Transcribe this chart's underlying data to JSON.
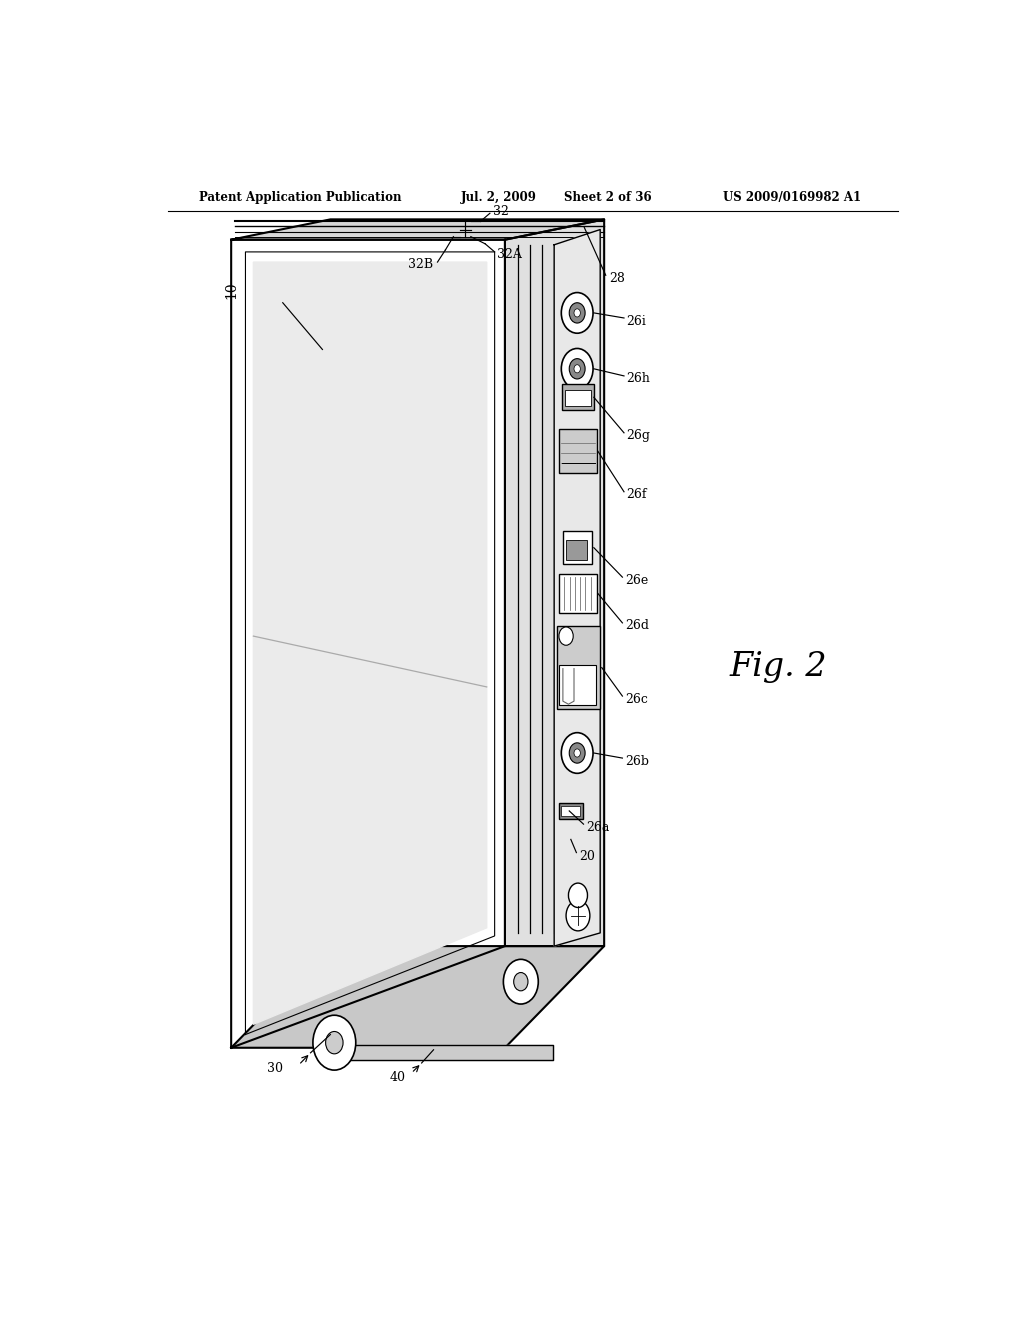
{
  "bg_color": "#ffffff",
  "header_text": "Patent Application Publication",
  "header_date": "Jul. 2, 2009",
  "header_sheet": "Sheet 2 of 36",
  "header_patent": "US 2009/0169982 A1",
  "fig_label": "Fig. 2",
  "line_color": "#000000",
  "label_fontsize": 9.0,
  "header_fontsize": 8.5
}
